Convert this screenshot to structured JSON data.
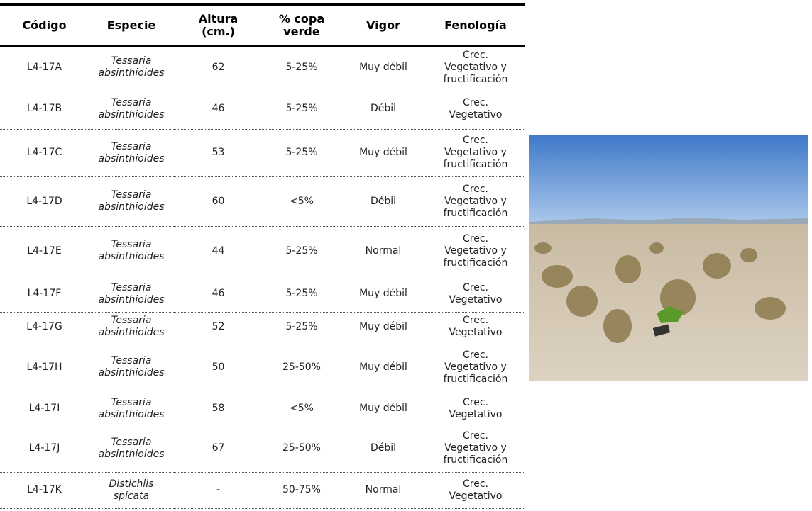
{
  "table": {
    "headers": [
      "Código",
      "Especie",
      "Altura\n(cm.)",
      "% copa\nverde",
      "Vigor",
      "Fenología"
    ],
    "rows": [
      [
        "L4-17A",
        "Tessaria\nabsinthioides",
        "62",
        "5-25%",
        "Muy débil",
        "Crec.\nVegetativo y\nfructificación"
      ],
      [
        "L4-17B",
        "Tessaria\nabsinthioides",
        "46",
        "5-25%",
        "Débil",
        "Crec.\nVegetativo"
      ],
      [
        "L4-17C",
        "Tessaria\nabsinthioides",
        "53",
        "5-25%",
        "Muy débil",
        "Crec.\nVegetativo y\nfructificación"
      ],
      [
        "L4-17D",
        "Tessaria\nabsinthioides",
        "60",
        "<5%",
        "Débil",
        "Crec.\nVegetativo y\nfructificación"
      ],
      [
        "L4-17E",
        "Tessaria\nabsinthioides",
        "44",
        "5-25%",
        "Normal",
        "Crec.\nVegetativo y\nfructificación"
      ],
      [
        "L4-17F",
        "Tessaria\nabsinthioides",
        "46",
        "5-25%",
        "Muy débil",
        "Crec.\nVegetativo"
      ],
      [
        "L4-17G",
        "Tessaria\nabsinthioides",
        "52",
        "5-25%",
        "Muy débil",
        "Crec.\nVegetativo"
      ],
      [
        "L4-17H",
        "Tessaria\nabsinthioides",
        "50",
        "25-50%",
        "Muy débil",
        "Crec.\nVegetativo y\nfructificación"
      ],
      [
        "L4-17I",
        "Tessaria\nabsinthioides",
        "58",
        "<5%",
        "Muy débil",
        "Crec.\nVegetativo"
      ],
      [
        "L4-17J",
        "Tessaria\nabsinthioides",
        "67",
        "25-50%",
        "Débil",
        "Crec.\nVegetativo y\nfructificación"
      ],
      [
        "L4-17K",
        "Distichlis\nspicata",
        "-",
        "50-75%",
        "Normal",
        "Crec.\nVegetativo"
      ]
    ]
  }
}
